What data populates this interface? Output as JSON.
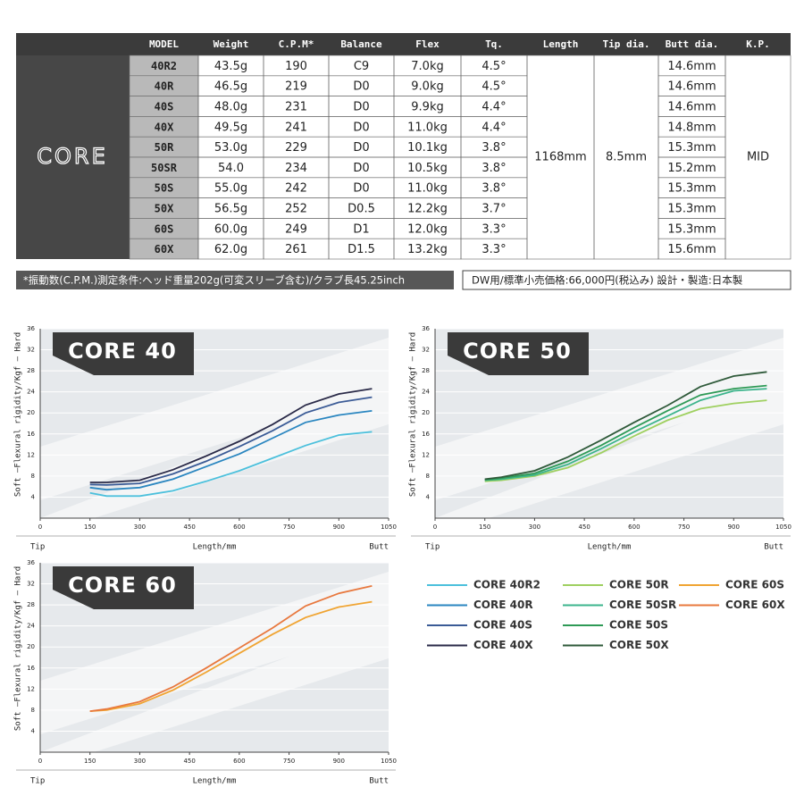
{
  "table": {
    "brand": "CORE",
    "headers": [
      "MODEL",
      "Weight",
      "C.P.M*",
      "Balance",
      "Flex",
      "Tq.",
      "Length",
      "Tip dia.",
      "Butt dia.",
      "K.P."
    ],
    "rows": [
      [
        "40R2",
        "43.5g",
        "190",
        "C9",
        "7.0kg",
        "4.5°",
        "14.6mm"
      ],
      [
        "40R",
        "46.5g",
        "219",
        "D0",
        "9.0kg",
        "4.5°",
        "14.6mm"
      ],
      [
        "40S",
        "48.0g",
        "231",
        "D0",
        "9.9kg",
        "4.4°",
        "14.6mm"
      ],
      [
        "40X",
        "49.5g",
        "241",
        "D0",
        "11.0kg",
        "4.4°",
        "14.8mm"
      ],
      [
        "50R",
        "53.0g",
        "229",
        "D0",
        "10.1kg",
        "3.8°",
        "15.3mm"
      ],
      [
        "50SR",
        "54.0",
        "234",
        "D0",
        "10.5kg",
        "3.8°",
        "15.2mm"
      ],
      [
        "50S",
        "55.0g",
        "242",
        "D0",
        "11.0kg",
        "3.8°",
        "15.3mm"
      ],
      [
        "50X",
        "56.5g",
        "252",
        "D0.5",
        "12.2kg",
        "3.7°",
        "15.3mm"
      ],
      [
        "60S",
        "60.0g",
        "249",
        "D1",
        "12.0kg",
        "3.3°",
        "15.3mm"
      ],
      [
        "60X",
        "62.0g",
        "261",
        "D1.5",
        "13.2kg",
        "3.3°",
        "15.6mm"
      ]
    ],
    "length": "1168mm",
    "tip_dia": "8.5mm",
    "kp": "MID"
  },
  "notes": {
    "measurement": "*振動数(C.P.M.)測定条件:ヘッド重量202g(可変スリーブ含む)/クラブ長45.25inch",
    "price": "DW用/標準小売価格:66,000円(税込み) 設計・製造:日本製"
  },
  "chart_data": [
    {
      "type": "line",
      "title": "CORE 40",
      "y_label": "Soft —Flexural rigidity/Kgf — Hard",
      "x_label": "Length/mm",
      "x_left": "Tip",
      "x_right": "Butt",
      "x": [
        150,
        200,
        300,
        400,
        500,
        600,
        700,
        800,
        900,
        1000
      ],
      "xlim": [
        0,
        1050
      ],
      "xticks": [
        0,
        150,
        300,
        450,
        600,
        750,
        900,
        1050
      ],
      "ylim": [
        0,
        36
      ],
      "yticks": [
        4,
        8,
        12,
        16,
        20,
        24,
        28,
        32,
        36
      ],
      "grid": true,
      "series": [
        {
          "name": "CORE 40R2",
          "color": "#4cc0dc",
          "values": [
            4.8,
            4.2,
            4.2,
            5.2,
            7.0,
            9.0,
            11.4,
            13.8,
            15.8,
            16.4
          ]
        },
        {
          "name": "CORE 40R",
          "color": "#2a86c0",
          "values": [
            5.8,
            5.4,
            5.8,
            7.4,
            9.8,
            12.2,
            15.2,
            18.2,
            19.6,
            20.4
          ]
        },
        {
          "name": "CORE 40S",
          "color": "#3b5b96",
          "values": [
            6.4,
            6.3,
            6.6,
            8.4,
            10.8,
            13.6,
            16.6,
            20.0,
            22.0,
            23.0
          ]
        },
        {
          "name": "CORE 40X",
          "color": "#2a2a48",
          "values": [
            6.8,
            6.8,
            7.2,
            9.2,
            11.8,
            14.6,
            17.8,
            21.5,
            23.6,
            24.6
          ]
        }
      ]
    },
    {
      "type": "line",
      "title": "CORE 50",
      "y_label": "Soft —Flexural rigidity/Kgf — Hard",
      "x_label": "Length/mm",
      "x_left": "Tip",
      "x_right": "Butt",
      "x": [
        150,
        200,
        300,
        400,
        500,
        600,
        700,
        800,
        900,
        1000
      ],
      "xlim": [
        0,
        1050
      ],
      "xticks": [
        0,
        150,
        300,
        450,
        600,
        750,
        900,
        1050
      ],
      "ylim": [
        0,
        36
      ],
      "yticks": [
        4,
        8,
        12,
        16,
        20,
        24,
        28,
        32,
        36
      ],
      "grid": true,
      "series": [
        {
          "name": "CORE 50R",
          "color": "#9fd060",
          "values": [
            7.0,
            7.2,
            8.0,
            9.6,
            12.4,
            15.6,
            18.6,
            20.8,
            21.8,
            22.4
          ]
        },
        {
          "name": "CORE 50SR",
          "color": "#3cb48c",
          "values": [
            7.2,
            7.4,
            8.2,
            10.2,
            13.2,
            16.4,
            19.4,
            22.4,
            24.2,
            24.6
          ]
        },
        {
          "name": "CORE 50S",
          "color": "#2e9a56",
          "values": [
            7.3,
            7.6,
            8.5,
            10.8,
            13.8,
            17.2,
            20.4,
            23.4,
            24.6,
            25.2
          ]
        },
        {
          "name": "CORE 50X",
          "color": "#2f5a3a",
          "values": [
            7.4,
            7.8,
            9.0,
            11.6,
            14.8,
            18.2,
            21.4,
            25.0,
            27.0,
            27.8
          ]
        }
      ]
    },
    {
      "type": "line",
      "title": "CORE 60",
      "y_label": "Soft —Flexural rigidity/Kgf — Hard",
      "x_label": "Length/mm",
      "x_left": "Tip",
      "x_right": "Butt",
      "x": [
        150,
        200,
        300,
        400,
        500,
        600,
        700,
        800,
        900,
        1000
      ],
      "xlim": [
        0,
        1050
      ],
      "xticks": [
        0,
        150,
        300,
        450,
        600,
        750,
        900,
        1050
      ],
      "ylim": [
        0,
        36
      ],
      "yticks": [
        4,
        8,
        12,
        16,
        20,
        24,
        28,
        32,
        36
      ],
      "grid": true,
      "series": [
        {
          "name": "CORE 60S",
          "color": "#f0a432",
          "values": [
            7.8,
            8.0,
            9.2,
            11.8,
            15.2,
            18.8,
            22.4,
            25.6,
            27.6,
            28.6
          ]
        },
        {
          "name": "CORE 60X",
          "color": "#e8783e",
          "values": [
            7.8,
            8.2,
            9.6,
            12.4,
            16.0,
            19.8,
            23.6,
            27.8,
            30.2,
            31.6
          ]
        }
      ]
    }
  ]
}
